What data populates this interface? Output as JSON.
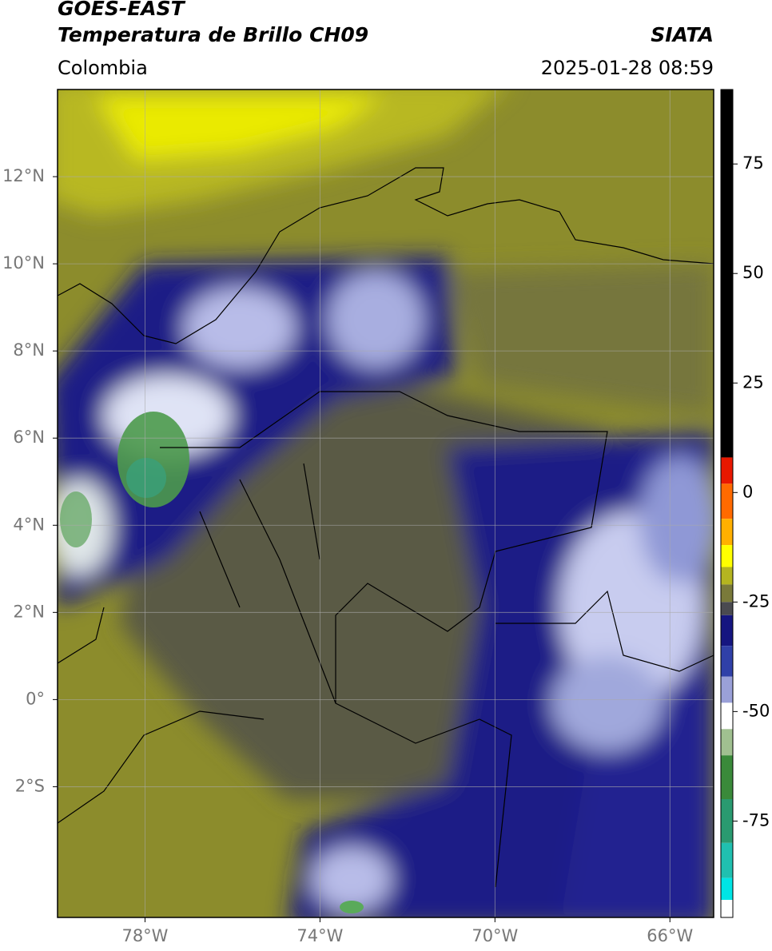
{
  "header": {
    "title": "GOES-EAST",
    "subtitle": "Temperatura de Brillo CH09",
    "region": "Colombia",
    "source": "SIATA",
    "datetime": "2025-01-28 08:59"
  },
  "map": {
    "xlim": [
      -80,
      -65
    ],
    "ylim": [
      -5,
      14
    ],
    "xticks": [
      {
        "value": -78,
        "label": "78°W"
      },
      {
        "value": -74,
        "label": "74°W"
      },
      {
        "value": -70,
        "label": "70°W"
      },
      {
        "value": -66,
        "label": "66°W"
      }
    ],
    "yticks": [
      {
        "value": -2,
        "label": "2°S"
      },
      {
        "value": 0,
        "label": "0°"
      },
      {
        "value": 2,
        "label": "2°N"
      },
      {
        "value": 4,
        "label": "4°N"
      },
      {
        "value": 6,
        "label": "6°N"
      },
      {
        "value": 8,
        "label": "8°N"
      },
      {
        "value": 10,
        "label": "10°N"
      },
      {
        "value": 12,
        "label": "12°N"
      }
    ],
    "grid": true,
    "colorbar": {
      "lim": [
        -97,
        92
      ],
      "ticks": [
        -75,
        -50,
        -25,
        0,
        25,
        50,
        75
      ],
      "stops": [
        {
          "value": 92,
          "color": "#000000"
        },
        {
          "value": 8,
          "color": "#e81800"
        },
        {
          "value": 2,
          "color": "#ff6a00"
        },
        {
          "value": -6,
          "color": "#ffb000"
        },
        {
          "value": -12,
          "color": "#ffff00"
        },
        {
          "value": -17,
          "color": "#b5b520"
        },
        {
          "value": -21,
          "color": "#7a7a3a"
        },
        {
          "value": -25,
          "color": "#4a4a50"
        },
        {
          "value": -28,
          "color": "#151580"
        },
        {
          "value": -35,
          "color": "#3040a8"
        },
        {
          "value": -42,
          "color": "#9aa0d8"
        },
        {
          "value": -48,
          "color": "#ffffff"
        },
        {
          "value": -54,
          "color": "#a0c090"
        },
        {
          "value": -60,
          "color": "#3a8a3a"
        },
        {
          "value": -70,
          "color": "#2a9a70"
        },
        {
          "value": -80,
          "color": "#20c0b0"
        },
        {
          "value": -88,
          "color": "#00e5e5"
        },
        {
          "value": -93,
          "color": "#ffffff"
        }
      ]
    }
  }
}
